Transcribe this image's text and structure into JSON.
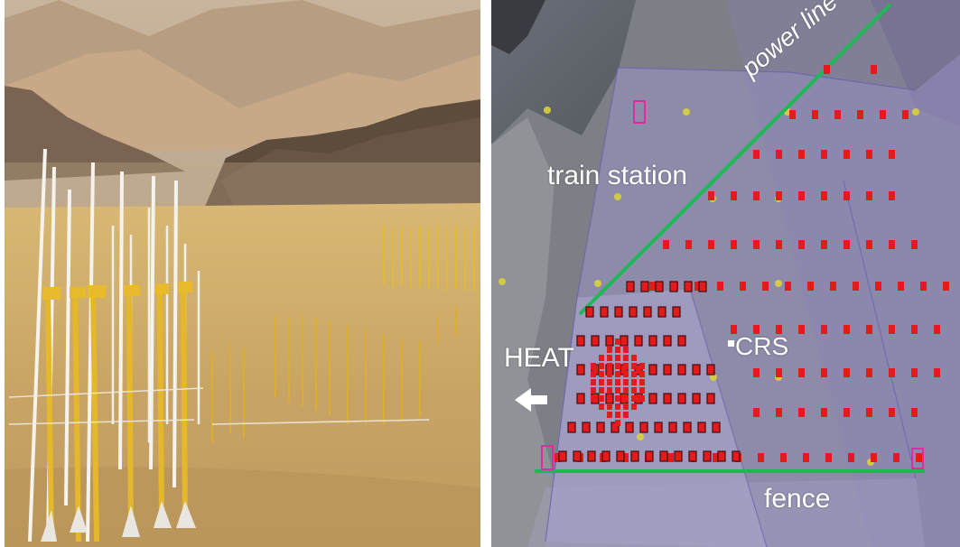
{
  "left_photo": {
    "alt": "High-altitude desert plain with rows of yellow and white detector antenna poles in front of mountains"
  },
  "map": {
    "labels": {
      "power_line": "power line",
      "train_station": "train station",
      "crs": "CRS",
      "heat": "HEAT",
      "fence": "fence"
    },
    "colors": {
      "detector": "#e41a1c",
      "power_line": "#1db954",
      "fence": "#1db954",
      "marker_outline": "#e22aa0",
      "heat_arrow": "#ffffff"
    },
    "icons": {
      "heat_arrow": "arrow-left-icon",
      "crs_marker": "square-marker-icon",
      "corner_markers": "square-outline-marker-icon"
    }
  }
}
